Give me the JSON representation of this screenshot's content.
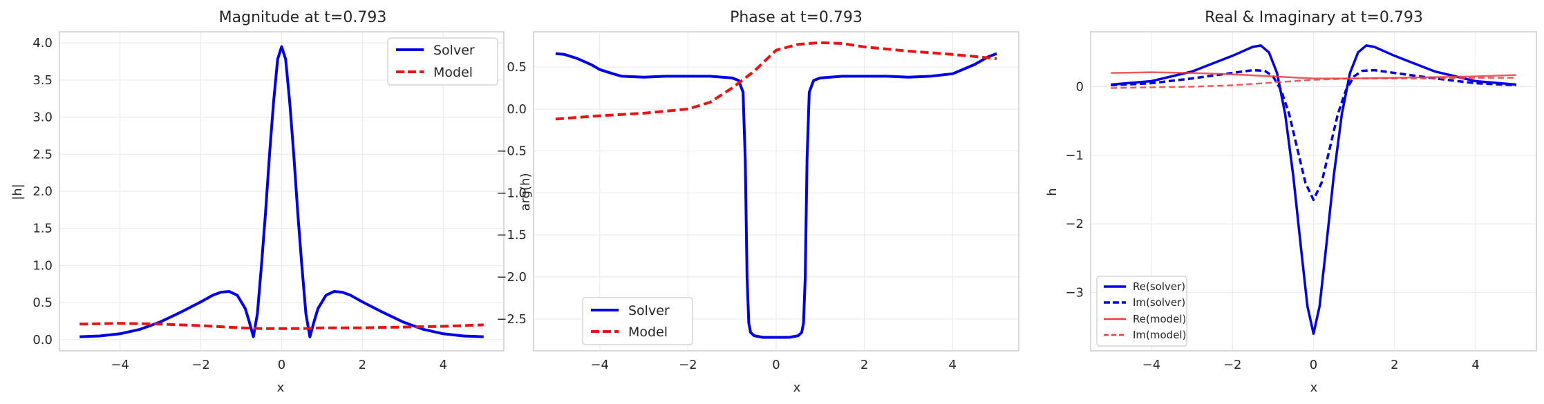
{
  "chart_data": [
    {
      "type": "line",
      "title": "Magnitude at t=0.793",
      "xlabel": "x",
      "ylabel": "|h|",
      "xlim": [
        -5.5,
        5.5
      ],
      "ylim": [
        -0.15,
        4.15
      ],
      "xticks": [
        -4,
        -2,
        0,
        2,
        4
      ],
      "xtick_labels": [
        "−4",
        "−2",
        "0",
        "2",
        "4"
      ],
      "yticks": [
        0.0,
        0.5,
        1.0,
        1.5,
        2.0,
        2.5,
        3.0,
        3.5,
        4.0
      ],
      "ytick_labels": [
        "0.0",
        "0.5",
        "1.0",
        "1.5",
        "2.0",
        "2.5",
        "3.0",
        "3.5",
        "4.0"
      ],
      "grid": true,
      "legend": "top-right",
      "series": [
        {
          "name": "Solver",
          "color": "#0000ee",
          "style": "solid",
          "width": 4,
          "x": [
            -5,
            -4.5,
            -4,
            -3.5,
            -3,
            -2.5,
            -2,
            -1.7,
            -1.5,
            -1.3,
            -1.1,
            -0.9,
            -0.8,
            -0.7,
            -0.6,
            -0.5,
            -0.4,
            -0.3,
            -0.2,
            -0.1,
            0,
            0.1,
            0.2,
            0.3,
            0.4,
            0.5,
            0.6,
            0.7,
            0.8,
            0.9,
            1.1,
            1.3,
            1.5,
            1.7,
            2,
            2.5,
            3,
            3.5,
            4,
            4.5,
            5
          ],
          "y": [
            0.04,
            0.05,
            0.08,
            0.14,
            0.24,
            0.37,
            0.51,
            0.6,
            0.64,
            0.65,
            0.6,
            0.42,
            0.24,
            0.04,
            0.35,
            1.0,
            1.7,
            2.5,
            3.2,
            3.78,
            3.95,
            3.78,
            3.2,
            2.5,
            1.7,
            1.0,
            0.35,
            0.04,
            0.24,
            0.42,
            0.6,
            0.65,
            0.64,
            0.6,
            0.51,
            0.37,
            0.24,
            0.14,
            0.08,
            0.05,
            0.04
          ]
        },
        {
          "name": "Model",
          "color": "#ee1111",
          "style": "dashed",
          "width": 4,
          "x": [
            -5,
            -4,
            -3,
            -2,
            -1,
            -0.5,
            0,
            0.5,
            1,
            2,
            3,
            4,
            5
          ],
          "y": [
            0.21,
            0.22,
            0.21,
            0.19,
            0.16,
            0.15,
            0.15,
            0.15,
            0.16,
            0.16,
            0.17,
            0.18,
            0.2
          ]
        }
      ]
    },
    {
      "type": "line",
      "title": "Phase at t=0.793",
      "xlabel": "x",
      "ylabel": "arg(h)",
      "xlim": [
        -5.5,
        5.5
      ],
      "ylim": [
        -2.88,
        0.92
      ],
      "xticks": [
        -4,
        -2,
        0,
        2,
        4
      ],
      "xtick_labels": [
        "−4",
        "−2",
        "0",
        "2",
        "4"
      ],
      "yticks": [
        -2.5,
        -2.0,
        -1.5,
        -1.0,
        -0.5,
        0.0,
        0.5
      ],
      "ytick_labels": [
        "−2.5",
        "−2.0",
        "−1.5",
        "−1.0",
        "−0.5",
        "0.0",
        "0.5"
      ],
      "grid": true,
      "legend": "bottom-left",
      "series": [
        {
          "name": "Solver",
          "color": "#0000ee",
          "style": "solid",
          "width": 4,
          "x": [
            -5,
            -4.8,
            -4.5,
            -4.2,
            -4,
            -3.7,
            -3.5,
            -3,
            -2.5,
            -2,
            -1.5,
            -1,
            -0.85,
            -0.75,
            -0.7,
            -0.66,
            -0.62,
            -0.58,
            -0.5,
            -0.3,
            0,
            0.3,
            0.5,
            0.58,
            0.62,
            0.66,
            0.7,
            0.75,
            0.85,
            1,
            1.5,
            2,
            2.5,
            3,
            3.5,
            4,
            4.5,
            4.8,
            5
          ],
          "y": [
            0.66,
            0.65,
            0.6,
            0.53,
            0.47,
            0.42,
            0.39,
            0.38,
            0.39,
            0.39,
            0.39,
            0.37,
            0.34,
            0.2,
            -0.6,
            -2.0,
            -2.55,
            -2.66,
            -2.7,
            -2.72,
            -2.72,
            -2.72,
            -2.7,
            -2.66,
            -2.55,
            -2.0,
            -0.6,
            0.2,
            0.34,
            0.37,
            0.39,
            0.39,
            0.39,
            0.38,
            0.39,
            0.42,
            0.53,
            0.62,
            0.66
          ]
        },
        {
          "name": "Model",
          "color": "#ee1111",
          "style": "dashed",
          "width": 4,
          "x": [
            -5,
            -4,
            -3,
            -2,
            -1.5,
            -1,
            -0.5,
            0,
            0.5,
            1,
            1.5,
            2,
            3,
            4,
            5
          ],
          "y": [
            -0.12,
            -0.08,
            -0.05,
            0.0,
            0.08,
            0.25,
            0.45,
            0.7,
            0.77,
            0.79,
            0.78,
            0.74,
            0.69,
            0.65,
            0.6
          ]
        }
      ]
    },
    {
      "type": "line",
      "title": "Real & Imaginary at t=0.793",
      "xlabel": "x",
      "ylabel": "h",
      "xlim": [
        -5.5,
        5.5
      ],
      "ylim": [
        -3.85,
        0.8
      ],
      "xticks": [
        -4,
        -2,
        0,
        2,
        4
      ],
      "xtick_labels": [
        "−4",
        "−2",
        "0",
        "2",
        "4"
      ],
      "yticks": [
        -3,
        -2,
        -1,
        0
      ],
      "ytick_labels": [
        "−3",
        "−2",
        "−1",
        "0"
      ],
      "grid": true,
      "legend": "bottom-left",
      "series": [
        {
          "name": "Re(solver)",
          "color": "#0000ee",
          "style": "solid",
          "width": 3.5,
          "x": [
            -5,
            -4,
            -3,
            -2,
            -1.5,
            -1.3,
            -1.1,
            -0.9,
            -0.7,
            -0.5,
            -0.3,
            -0.15,
            0,
            0.15,
            0.3,
            0.5,
            0.7,
            0.9,
            1.1,
            1.3,
            1.5,
            2,
            3,
            4,
            5
          ],
          "y": [
            0.03,
            0.08,
            0.22,
            0.45,
            0.58,
            0.6,
            0.5,
            0.2,
            -0.4,
            -1.3,
            -2.4,
            -3.2,
            -3.6,
            -3.2,
            -2.4,
            -1.3,
            -0.4,
            0.2,
            0.5,
            0.6,
            0.58,
            0.45,
            0.22,
            0.08,
            0.03
          ]
        },
        {
          "name": "Im(solver)",
          "color": "#0000ee",
          "style": "dashed",
          "width": 3.5,
          "x": [
            -5,
            -4,
            -3,
            -2,
            -1.5,
            -1.2,
            -1,
            -0.8,
            -0.6,
            -0.4,
            -0.2,
            0,
            0.2,
            0.4,
            0.6,
            0.8,
            1,
            1.2,
            1.5,
            2,
            3,
            4,
            5
          ],
          "y": [
            0.02,
            0.05,
            0.12,
            0.2,
            0.24,
            0.23,
            0.15,
            -0.05,
            -0.4,
            -0.9,
            -1.4,
            -1.65,
            -1.4,
            -0.9,
            -0.4,
            -0.05,
            0.15,
            0.23,
            0.24,
            0.2,
            0.12,
            0.05,
            0.02
          ]
        },
        {
          "name": "Re(model)",
          "color": "#f03c3c",
          "style": "solid",
          "width": 2.5,
          "x": [
            -5,
            -4,
            -3,
            -2,
            -1,
            0,
            1,
            2,
            3,
            4,
            5
          ],
          "y": [
            0.2,
            0.21,
            0.2,
            0.18,
            0.15,
            0.12,
            0.12,
            0.13,
            0.14,
            0.15,
            0.17
          ]
        },
        {
          "name": "Im(model)",
          "color": "#f03c3c",
          "style": "dashed",
          "width": 2.5,
          "x": [
            -5,
            -4,
            -3,
            -2,
            -1,
            0,
            1,
            2,
            3,
            4,
            5
          ],
          "y": [
            -0.02,
            -0.01,
            0.0,
            0.02,
            0.06,
            0.1,
            0.12,
            0.12,
            0.12,
            0.13,
            0.13
          ]
        }
      ]
    }
  ]
}
